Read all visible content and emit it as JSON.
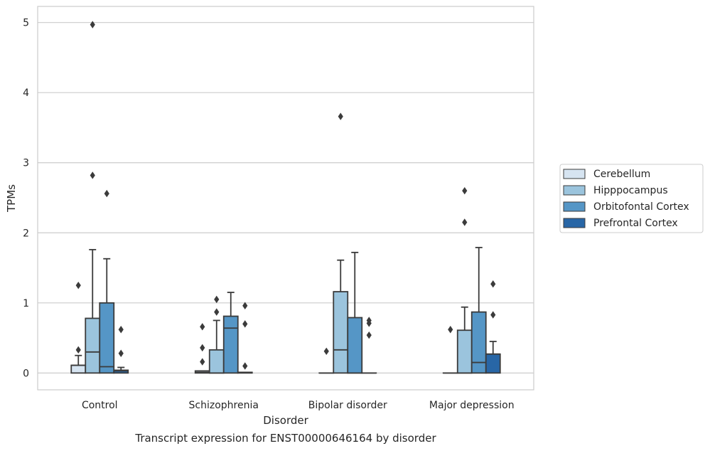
{
  "chart_data": {
    "type": "box",
    "title": "",
    "caption": "Transcript expression for ENST00000646164 by disorder",
    "xlabel": "Disorder",
    "ylabel": "TPMs",
    "ylim": [
      -0.24,
      5.23
    ],
    "yticks": [
      0,
      1,
      2,
      3,
      4,
      5
    ],
    "grid": "horizontal",
    "legend_position": "right",
    "categories": [
      "Control",
      "Schizophrenia",
      "Bipolar disorder",
      "Major depression"
    ],
    "series": [
      {
        "name": "Cerebellum",
        "color": "#d6e4f1",
        "boxes": [
          {
            "q1": 0,
            "median": 0.11,
            "q3": 0.11,
            "whisker_low": 0,
            "whisker_high": 0.25,
            "outliers": [
              0.33,
              1.25
            ]
          },
          {
            "q1": 0,
            "median": 0.01,
            "q3": 0.03,
            "whisker_low": 0,
            "whisker_high": 0.03,
            "outliers": [
              0.16,
              0.36,
              0.66
            ]
          },
          {
            "q1": 0,
            "median": 0,
            "q3": 0,
            "whisker_low": 0,
            "whisker_high": 0,
            "outliers": [
              0.31
            ]
          },
          {
            "q1": 0,
            "median": 0,
            "q3": 0,
            "whisker_low": 0,
            "whisker_high": 0,
            "outliers": [
              0.62
            ]
          }
        ]
      },
      {
        "name": "Hipppocampus",
        "color": "#9bc4dd",
        "boxes": [
          {
            "q1": 0,
            "median": 0.3,
            "q3": 0.78,
            "whisker_low": 0,
            "whisker_high": 1.76,
            "outliers": [
              2.82,
              4.97
            ]
          },
          {
            "q1": 0,
            "median": 0,
            "q3": 0.33,
            "whisker_low": 0,
            "whisker_high": 0.75,
            "outliers": [
              0.87,
              1.05
            ]
          },
          {
            "q1": 0,
            "median": 0.33,
            "q3": 1.16,
            "whisker_low": 0,
            "whisker_high": 1.61,
            "outliers": [
              3.66
            ]
          },
          {
            "q1": 0,
            "median": 0,
            "q3": 0.61,
            "whisker_low": 0,
            "whisker_high": 0.94,
            "outliers": [
              2.15,
              2.6
            ]
          }
        ]
      },
      {
        "name": "Orbitofontal Cortex",
        "color": "#5596c6",
        "boxes": [
          {
            "q1": 0,
            "median": 0.09,
            "q3": 1.0,
            "whisker_low": 0,
            "whisker_high": 1.63,
            "outliers": [
              2.56
            ]
          },
          {
            "q1": 0,
            "median": 0.64,
            "q3": 0.81,
            "whisker_low": 0,
            "whisker_high": 1.15,
            "outliers": []
          },
          {
            "q1": 0,
            "median": 0,
            "q3": 0.79,
            "whisker_low": 0,
            "whisker_high": 1.72,
            "outliers": []
          },
          {
            "q1": 0,
            "median": 0.15,
            "q3": 0.87,
            "whisker_low": 0,
            "whisker_high": 1.79,
            "outliers": []
          }
        ]
      },
      {
        "name": "Prefrontal Cortex",
        "color": "#2866a6",
        "boxes": [
          {
            "q1": 0,
            "median": 0.03,
            "q3": 0.04,
            "whisker_low": 0,
            "whisker_high": 0.08,
            "outliers": [
              0.28,
              0.62
            ]
          },
          {
            "q1": 0,
            "median": 0.01,
            "q3": 0.01,
            "whisker_low": 0,
            "whisker_high": 0.01,
            "outliers": [
              0.1,
              0.7,
              0.96
            ]
          },
          {
            "q1": 0,
            "median": 0,
            "q3": 0,
            "whisker_low": 0,
            "whisker_high": 0,
            "outliers": [
              0.54,
              0.71,
              0.75
            ]
          },
          {
            "q1": 0,
            "median": 0.27,
            "q3": 0.27,
            "whisker_low": 0,
            "whisker_high": 0.45,
            "outliers": [
              0.83,
              1.27
            ]
          }
        ]
      }
    ]
  }
}
